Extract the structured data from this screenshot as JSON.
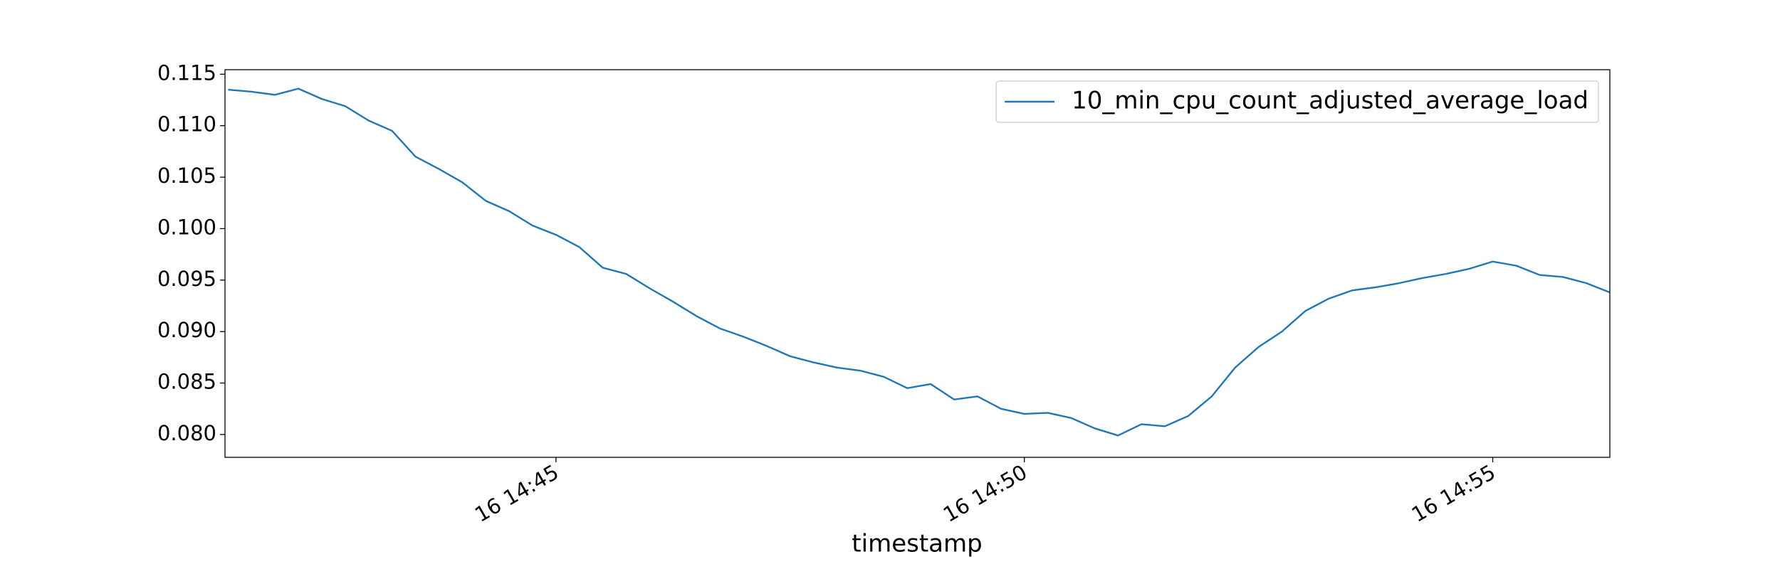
{
  "chart_data": {
    "type": "line",
    "x_label": "timestamp",
    "x": [
      "16 14:41:30",
      "16 14:41:45",
      "16 14:42:00",
      "16 14:42:15",
      "16 14:42:30",
      "16 14:42:45",
      "16 14:43:00",
      "16 14:43:15",
      "16 14:43:30",
      "16 14:43:45",
      "16 14:44:00",
      "16 14:44:15",
      "16 14:44:30",
      "16 14:44:45",
      "16 14:45:00",
      "16 14:45:15",
      "16 14:45:30",
      "16 14:45:45",
      "16 14:46:00",
      "16 14:46:15",
      "16 14:46:30",
      "16 14:46:45",
      "16 14:47:00",
      "16 14:47:15",
      "16 14:47:30",
      "16 14:47:45",
      "16 14:48:00",
      "16 14:48:15",
      "16 14:48:30",
      "16 14:48:45",
      "16 14:49:00",
      "16 14:49:15",
      "16 14:49:30",
      "16 14:49:45",
      "16 14:50:00",
      "16 14:50:15",
      "16 14:50:30",
      "16 14:50:45",
      "16 14:51:00",
      "16 14:51:15",
      "16 14:51:30",
      "16 14:51:45",
      "16 14:52:00",
      "16 14:52:15",
      "16 14:52:30",
      "16 14:52:45",
      "16 14:53:00",
      "16 14:53:15",
      "16 14:53:30",
      "16 14:53:45",
      "16 14:54:00",
      "16 14:54:15",
      "16 14:54:30",
      "16 14:54:45",
      "16 14:55:00",
      "16 14:55:15",
      "16 14:55:30",
      "16 14:55:45",
      "16 14:56:00",
      "16 14:56:15"
    ],
    "series": [
      {
        "name": "10_min_cpu_count_adjusted_average_load",
        "color": "#1f77b4",
        "values": [
          0.1135,
          0.1133,
          0.113,
          0.1136,
          0.1126,
          0.1119,
          0.1105,
          0.1095,
          0.107,
          0.1058,
          0.1045,
          0.1027,
          0.1017,
          0.1003,
          0.0994,
          0.0982,
          0.0962,
          0.0956,
          0.0942,
          0.0929,
          0.0915,
          0.0903,
          0.0895,
          0.0886,
          0.0876,
          0.087,
          0.0865,
          0.0862,
          0.0856,
          0.0845,
          0.0849,
          0.0834,
          0.0837,
          0.0825,
          0.082,
          0.0821,
          0.0816,
          0.0806,
          0.0799,
          0.081,
          0.0808,
          0.0818,
          0.0837,
          0.0865,
          0.0885,
          0.09,
          0.092,
          0.0932,
          0.094,
          0.0943,
          0.0947,
          0.0952,
          0.0956,
          0.0961,
          0.0968,
          0.0964,
          0.0955,
          0.0953,
          0.0947,
          0.0938
        ]
      }
    ],
    "xlim": [
      "16 14:41:28",
      "16 14:56:15"
    ],
    "xticks": [
      "16 14:45",
      "16 14:50",
      "16 14:55"
    ],
    "ylim": [
      0.07778,
      0.11544
    ],
    "yticks": [
      {
        "value": 0.08,
        "label": "0.080"
      },
      {
        "value": 0.085,
        "label": "0.085"
      },
      {
        "value": 0.09,
        "label": "0.090"
      },
      {
        "value": 0.095,
        "label": "0.095"
      },
      {
        "value": 0.1,
        "label": "0.100"
      },
      {
        "value": 0.105,
        "label": "0.105"
      },
      {
        "value": 0.11,
        "label": "0.110"
      },
      {
        "value": 0.115,
        "label": "0.115"
      }
    ],
    "grid": false,
    "legend": "upper right"
  }
}
